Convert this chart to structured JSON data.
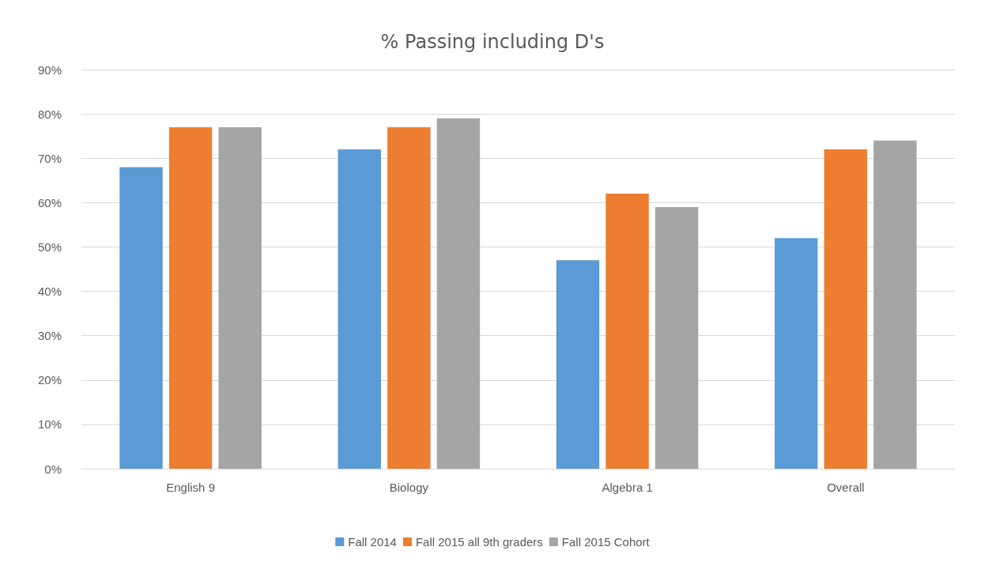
{
  "chart_data": {
    "type": "bar",
    "title": "% Passing including D's",
    "categories": [
      "English 9",
      "Biology",
      "Algebra 1",
      "Overall"
    ],
    "series": [
      {
        "name": "Fall 2014",
        "color": "#5b9bd5",
        "values": [
          68,
          72,
          47,
          52
        ]
      },
      {
        "name": "Fall 2015 all 9th graders",
        "color": "#ed7d31",
        "values": [
          77,
          77,
          62,
          72
        ]
      },
      {
        "name": "Fall 2015 Cohort",
        "color": "#a5a5a5",
        "values": [
          77,
          79,
          59,
          74
        ]
      }
    ],
    "ylim": [
      0,
      90
    ],
    "yticks": [
      {
        "value": 0,
        "label": "0%"
      },
      {
        "value": 10,
        "label": "10%"
      },
      {
        "value": 20,
        "label": "20%"
      },
      {
        "value": 30,
        "label": "30%"
      },
      {
        "value": 40,
        "label": "40%"
      },
      {
        "value": 50,
        "label": "50%"
      },
      {
        "value": 60,
        "label": "60%"
      },
      {
        "value": 70,
        "label": "70%"
      },
      {
        "value": 80,
        "label": "80%"
      },
      {
        "value": 90,
        "label": "90%"
      }
    ],
    "grid": "y",
    "legend": "bottom"
  }
}
